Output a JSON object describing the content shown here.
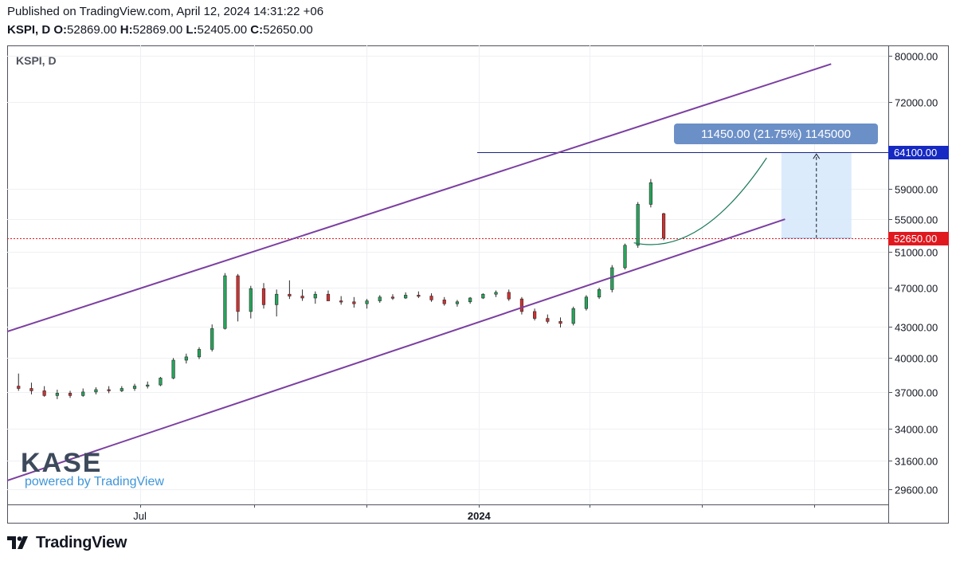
{
  "header": {
    "published": "Published on TradingView.com, April 12, 2024 14:31:22 +06",
    "symbol": "KSPI, D",
    "o_label": "O:",
    "o_value": "52869.00",
    "h_label": "H:",
    "h_value": "52869.00",
    "l_label": "L:",
    "l_value": "52405.00",
    "c_label": "C:",
    "c_value": "52650.00"
  },
  "chart_symbol": "KSPI, D",
  "watermark": {
    "logo": "KASE",
    "tagline": "powered by TradingView"
  },
  "footer": {
    "brand": "TradingView",
    "icon": "tradingview-logo-icon"
  },
  "colors": {
    "up": "#26a65b",
    "down": "#d32f2f",
    "channel": "#7b3fa0",
    "target_line": "#1a237e",
    "price_badge": "#e0191f",
    "target_badge": "#1629c2",
    "measure_label": "#6b8fc7",
    "curve": "#1b7a5a"
  },
  "chart_data": {
    "type": "candlestick",
    "y_scale": "log",
    "y_ticks": [
      29600,
      31600,
      34000,
      37000,
      40000,
      43000,
      47000,
      51000,
      55000,
      59000,
      72000,
      80000
    ],
    "y_tick_labels": [
      "29600.00",
      "31600.00",
      "34000.00",
      "37000.00",
      "40000.00",
      "43000.00",
      "47000.00",
      "51000.00",
      "55000.00",
      "59000.00",
      "72000.00",
      "80000.00"
    ],
    "x_labels": [
      "Jul",
      "2024"
    ],
    "x_label_dates": [
      "2023-07-01",
      "2024-01-01"
    ],
    "x_range": [
      "2023-04-20",
      "2024-08-10"
    ],
    "x_minor_dates": [
      "2023-09-01",
      "2023-11-01",
      "2024-03-01",
      "2024-05-01",
      "2024-07-01"
    ],
    "price_levels": [
      {
        "name": "last-price",
        "value": 52650,
        "label": "52650.00",
        "style": "dotted"
      },
      {
        "name": "target",
        "value": 64100,
        "label": "64100.00",
        "style": "solid"
      }
    ],
    "measure": {
      "label": "11450.00 (21.75%) 1145000",
      "from": 52650,
      "to": 64100
    },
    "channel": {
      "upper": [
        [
          "2023-04-20",
          42500
        ],
        [
          "2024-07-10",
          78500
        ]
      ],
      "lower": [
        [
          "2023-04-20",
          30200
        ],
        [
          "2024-06-15",
          55000
        ]
      ]
    },
    "projection_curve": [
      [
        "2024-03-25",
        52100
      ],
      [
        "2024-04-30",
        51500
      ],
      [
        "2024-06-05",
        63300
      ]
    ],
    "candles_weekly_ohlc": [
      [
        "2023-04-24",
        37500,
        38600,
        37100,
        37300
      ],
      [
        "2023-05-01",
        37300,
        37800,
        36800,
        37100
      ],
      [
        "2023-05-08",
        37100,
        37500,
        36600,
        36700
      ],
      [
        "2023-05-15",
        36700,
        37200,
        36400,
        36900
      ],
      [
        "2023-05-22",
        36900,
        37100,
        36500,
        36700
      ],
      [
        "2023-05-29",
        36700,
        37300,
        36600,
        37000
      ],
      [
        "2023-06-05",
        37000,
        37400,
        36800,
        37200
      ],
      [
        "2023-06-12",
        37200,
        37500,
        36900,
        37100
      ],
      [
        "2023-06-19",
        37100,
        37500,
        37000,
        37300
      ],
      [
        "2023-06-26",
        37300,
        37700,
        37100,
        37500
      ],
      [
        "2023-07-03",
        37500,
        37900,
        37300,
        37600
      ],
      [
        "2023-07-10",
        37600,
        38300,
        37500,
        38200
      ],
      [
        "2023-07-17",
        38200,
        40000,
        38100,
        39800
      ],
      [
        "2023-07-24",
        39800,
        40400,
        39500,
        40100
      ],
      [
        "2023-07-31",
        40100,
        41000,
        39900,
        40800
      ],
      [
        "2023-08-07",
        40800,
        43200,
        40600,
        42800
      ],
      [
        "2023-08-14",
        42800,
        48600,
        42700,
        48300
      ],
      [
        "2023-08-21",
        48300,
        48500,
        43500,
        44500
      ],
      [
        "2023-08-28",
        44500,
        47200,
        43800,
        46900
      ],
      [
        "2023-09-04",
        46900,
        47500,
        44800,
        45200
      ],
      [
        "2023-09-11",
        45200,
        46800,
        44000,
        46300
      ],
      [
        "2023-09-18",
        46300,
        47800,
        45800,
        46100
      ],
      [
        "2023-09-25",
        46100,
        46800,
        45600,
        45900
      ],
      [
        "2023-10-02",
        45900,
        46600,
        45300,
        46300
      ],
      [
        "2023-10-09",
        46300,
        46700,
        45700,
        45600
      ],
      [
        "2023-10-16",
        45600,
        46100,
        45200,
        45500
      ],
      [
        "2023-10-23",
        45500,
        46000,
        44900,
        45300
      ],
      [
        "2023-10-30",
        45300,
        45800,
        44800,
        45600
      ],
      [
        "2023-11-06",
        45600,
        46200,
        45400,
        46000
      ],
      [
        "2023-11-13",
        46000,
        46300,
        45700,
        45900
      ],
      [
        "2023-11-20",
        45900,
        46500,
        45800,
        46200
      ],
      [
        "2023-11-27",
        46200,
        46600,
        45900,
        46100
      ],
      [
        "2023-12-04",
        46100,
        46400,
        45500,
        45700
      ],
      [
        "2023-12-11",
        45700,
        46000,
        45100,
        45300
      ],
      [
        "2023-12-18",
        45300,
        45700,
        45000,
        45500
      ],
      [
        "2023-12-25",
        45500,
        46000,
        45300,
        45900
      ],
      [
        "2024-01-01",
        45900,
        46400,
        45800,
        46300
      ],
      [
        "2024-01-08",
        46300,
        46700,
        46000,
        46500
      ],
      [
        "2024-01-15",
        46500,
        46800,
        45600,
        45800
      ],
      [
        "2024-01-22",
        45800,
        46000,
        44200,
        44500
      ],
      [
        "2024-01-29",
        44500,
        44800,
        43600,
        43800
      ],
      [
        "2024-02-05",
        43800,
        44200,
        43300,
        43500
      ],
      [
        "2024-02-12",
        43500,
        43900,
        42900,
        43300
      ],
      [
        "2024-02-19",
        43300,
        45000,
        43100,
        44800
      ],
      [
        "2024-02-26",
        44800,
        46200,
        44600,
        46000
      ],
      [
        "2024-03-04",
        46000,
        47000,
        45800,
        46800
      ],
      [
        "2024-03-11",
        46800,
        49500,
        46500,
        49200
      ],
      [
        "2024-03-18",
        49200,
        52000,
        49000,
        51800
      ],
      [
        "2024-03-25",
        51800,
        57200,
        51500,
        56900
      ],
      [
        "2024-04-01",
        56900,
        60300,
        56500,
        59800
      ],
      [
        "2024-04-08",
        55700,
        55800,
        52405,
        52650
      ]
    ]
  }
}
